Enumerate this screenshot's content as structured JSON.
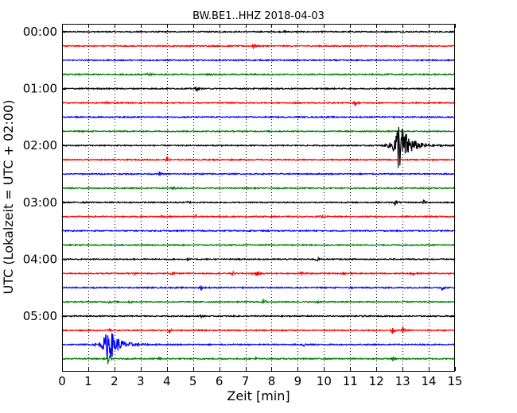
{
  "chart_data": {
    "type": "line",
    "title": "BW.BE1..HHZ 2018-04-03",
    "xlabel": "Zeit  [min]",
    "ylabel": "UTC (Lokalzeit = UTC + 02:00)",
    "xlim": [
      0,
      15
    ],
    "x_ticks": [
      "0",
      "1",
      "2",
      "3",
      "4",
      "5",
      "6",
      "7",
      "8",
      "9",
      "10",
      "11",
      "12",
      "13",
      "14",
      "15"
    ],
    "y_ticks": [
      {
        "label": "00:00",
        "row": 0
      },
      {
        "label": "01:00",
        "row": 4
      },
      {
        "label": "02:00",
        "row": 8
      },
      {
        "label": "03:00",
        "row": 12
      },
      {
        "label": "04:00",
        "row": 16
      },
      {
        "label": "05:00",
        "row": 20
      }
    ],
    "grid": "vertical dotted at each minute",
    "row_interval_minutes": 15,
    "trace_colors": [
      "#000000",
      "#ff0000",
      "#0000ff",
      "#008000"
    ],
    "rows": [
      {
        "start": "00:00",
        "events": [
          {
            "t": 8.5,
            "a": 0.15
          }
        ]
      },
      {
        "start": "00:15",
        "events": [
          {
            "t": 7.3,
            "a": 0.3
          }
        ]
      },
      {
        "start": "00:30",
        "events": []
      },
      {
        "start": "00:45",
        "events": [
          {
            "t": 3.3,
            "a": 0.35
          }
        ]
      },
      {
        "start": "01:00",
        "events": [
          {
            "t": 5.1,
            "a": 0.4
          }
        ]
      },
      {
        "start": "01:15",
        "events": [
          {
            "t": 1.7,
            "a": 0.2
          },
          {
            "t": 11.2,
            "a": 0.3
          }
        ]
      },
      {
        "start": "01:30",
        "events": []
      },
      {
        "start": "01:45",
        "events": []
      },
      {
        "start": "02:00",
        "events": [
          {
            "t": 6.0,
            "a": 0.1
          },
          {
            "t": 12.85,
            "a": 3.4
          }
        ]
      },
      {
        "start": "02:15",
        "events": [
          {
            "t": 4.0,
            "a": 0.35
          }
        ]
      },
      {
        "start": "02:30",
        "events": [
          {
            "t": 3.7,
            "a": 0.3
          }
        ]
      },
      {
        "start": "02:45",
        "events": [
          {
            "t": 4.2,
            "a": 0.35
          }
        ]
      },
      {
        "start": "03:00",
        "events": [
          {
            "t": 4.8,
            "a": 0.15
          },
          {
            "t": 12.7,
            "a": 0.35
          },
          {
            "t": 13.8,
            "a": 0.35
          }
        ]
      },
      {
        "start": "03:15",
        "events": [
          {
            "t": 3.8,
            "a": 0.2
          },
          {
            "t": 5.1,
            "a": 0.35
          },
          {
            "t": 9.9,
            "a": 0.2
          }
        ]
      },
      {
        "start": "03:30",
        "events": [
          {
            "t": 5.2,
            "a": 0.15
          }
        ]
      },
      {
        "start": "03:45",
        "events": []
      },
      {
        "start": "04:00",
        "events": [
          {
            "t": 4.8,
            "a": 0.15
          },
          {
            "t": 9.7,
            "a": 0.4
          }
        ]
      },
      {
        "start": "04:15",
        "events": [
          {
            "t": 2.8,
            "a": 0.2
          },
          {
            "t": 4.2,
            "a": 0.3
          },
          {
            "t": 6.5,
            "a": 0.25
          },
          {
            "t": 7.4,
            "a": 0.5
          },
          {
            "t": 9.1,
            "a": 0.45
          },
          {
            "t": 10.7,
            "a": 0.25
          },
          {
            "t": 13.4,
            "a": 0.3
          }
        ]
      },
      {
        "start": "04:30",
        "events": [
          {
            "t": 5.3,
            "a": 0.3
          },
          {
            "t": 11.0,
            "a": 0.15
          },
          {
            "t": 14.5,
            "a": 0.3
          }
        ]
      },
      {
        "start": "04:45",
        "events": [
          {
            "t": 1.8,
            "a": 0.2
          },
          {
            "t": 2.6,
            "a": 0.2
          },
          {
            "t": 7.7,
            "a": 0.5
          },
          {
            "t": 9.7,
            "a": 0.2
          }
        ]
      },
      {
        "start": "05:00",
        "events": [
          {
            "t": 5.3,
            "a": 0.15
          },
          {
            "t": 11.5,
            "a": 0.15
          }
        ]
      },
      {
        "start": "05:15",
        "events": [
          {
            "t": 1.8,
            "a": 0.2
          },
          {
            "t": 4.1,
            "a": 0.3
          },
          {
            "t": 12.6,
            "a": 0.4
          },
          {
            "t": 13.0,
            "a": 0.4
          }
        ]
      },
      {
        "start": "05:30",
        "events": [
          {
            "t": 1.75,
            "a": 2.3
          },
          {
            "t": 9.2,
            "a": 0.35
          }
        ]
      },
      {
        "start": "05:45",
        "events": [
          {
            "t": 1.75,
            "a": 0.8
          },
          {
            "t": 3.7,
            "a": 0.15
          },
          {
            "t": 7.4,
            "a": 0.15
          },
          {
            "t": 12.6,
            "a": 0.3
          }
        ]
      }
    ]
  }
}
